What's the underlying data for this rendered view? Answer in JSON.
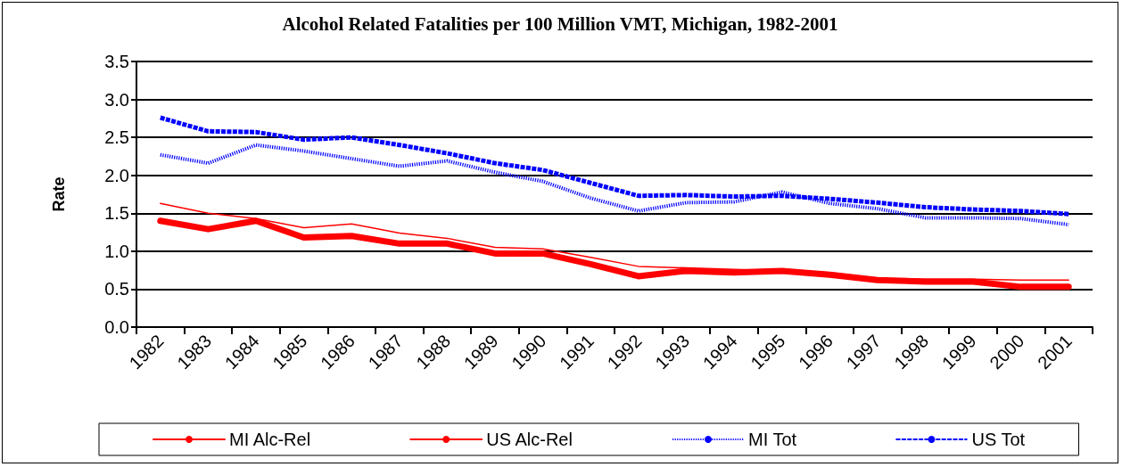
{
  "chart_data": {
    "type": "line",
    "title": "Alcohol Related Fatalities per 100 Million VMT, Michigan, 1982-2001",
    "ylabel": "Rate",
    "categories": [
      "1982",
      "1983",
      "1984",
      "1985",
      "1986",
      "1987",
      "1988",
      "1989",
      "1990",
      "1991",
      "1992",
      "1993",
      "1994",
      "1995",
      "1996",
      "1997",
      "1998",
      "1999",
      "2000",
      "2001"
    ],
    "series": [
      {
        "name": "MI Alc-Rel",
        "color": "#ff0000",
        "line_style": "solid",
        "values": [
          1.4,
          1.29,
          1.4,
          1.18,
          1.2,
          1.1,
          1.1,
          0.97,
          0.97,
          0.83,
          0.67,
          0.74,
          0.72,
          0.74,
          0.69,
          0.62,
          0.6,
          0.6,
          0.53,
          0.53
        ]
      },
      {
        "name": "US Alc-Rel",
        "color": "#ff0000",
        "line_style": "solid",
        "values": [
          1.63,
          1.5,
          1.43,
          1.31,
          1.36,
          1.24,
          1.17,
          1.05,
          1.03,
          0.92,
          0.8,
          0.78,
          0.76,
          0.74,
          0.72,
          0.64,
          0.63,
          0.63,
          0.62,
          0.62
        ]
      },
      {
        "name": "MI Tot",
        "color": "#0000ff",
        "line_style": "dotted",
        "values": [
          2.27,
          2.16,
          2.4,
          2.32,
          2.22,
          2.12,
          2.19,
          2.04,
          1.92,
          1.7,
          1.53,
          1.64,
          1.65,
          1.78,
          1.63,
          1.56,
          1.44,
          1.44,
          1.43,
          1.35
        ]
      },
      {
        "name": "US Tot",
        "color": "#0000ff",
        "line_style": "dashed",
        "values": [
          2.76,
          2.58,
          2.57,
          2.47,
          2.5,
          2.4,
          2.29,
          2.16,
          2.07,
          1.9,
          1.73,
          1.74,
          1.72,
          1.73,
          1.69,
          1.64,
          1.58,
          1.55,
          1.53,
          1.49
        ]
      }
    ],
    "ylim": [
      0,
      3.5
    ],
    "yticks": [
      {
        "value": 0,
        "label": "0.0"
      },
      0.5,
      {
        "value": 1,
        "label": "1.0"
      },
      1.5,
      {
        "value": 2,
        "label": "2.0"
      },
      2.5,
      {
        "value": 3,
        "label": "3.0"
      },
      3.5
    ],
    "grid": "y",
    "legend": "bottom",
    "marker": "none"
  }
}
